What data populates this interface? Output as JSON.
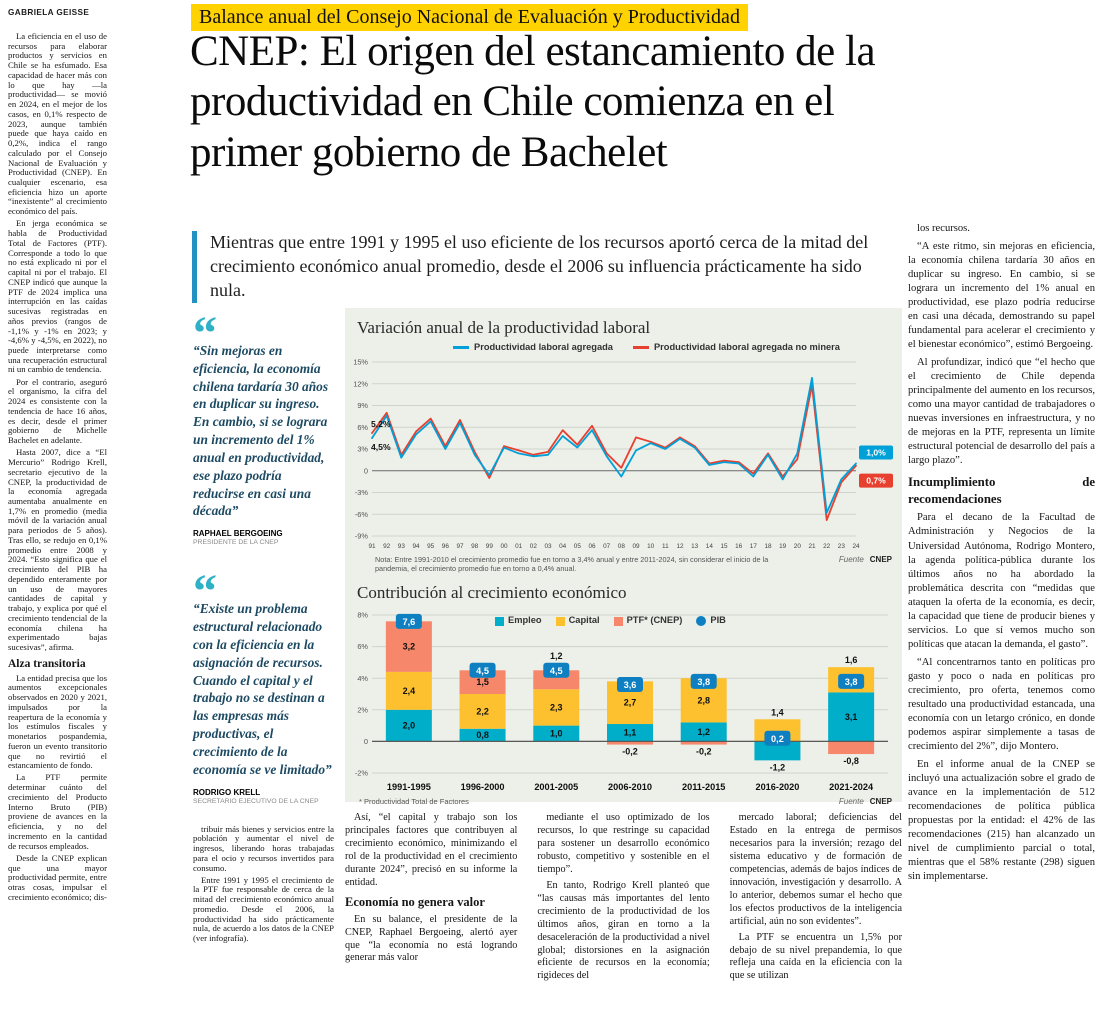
{
  "byline": "GABRIELA GEISSE",
  "kicker": "Balance anual del Consejo Nacional de Evaluación y Productividad",
  "headline": "CNEP: El origen del estancamiento de la productividad en Chile comienza en el primer gobierno de Bachelet",
  "deck": "Mientras que entre 1991 y 1995 el uso eficiente de los recursos aportó cerca de la mitad del crecimiento económico anual promedio, desde el 2006 su influencia prácticamente ha sido nula.",
  "quotes": [
    {
      "text": "“Sin mejoras en eficiencia, la economía chilena tardaría 30 años en duplicar su ingreso. En cambio, si se lograra un incremento del 1% anual en productividad, ese plazo podría reducirse en casi una década”",
      "name": "RAPHAEL BERGOEING",
      "role": "PRESIDENTE DE LA CNEP"
    },
    {
      "text": "“Existe un problema estructural relacionado con la eficiencia en la asignación de recursos. Cuando el capital y el trabajo no se destinan a las empresas más productivas, el crecimiento de la economía se ve limitado”",
      "name": "RODRIGO KRELL",
      "role": "SECRETARIO EJECUTIVO DE LA CNEP"
    }
  ],
  "columns": {
    "col1": {
      "p1": "La eficiencia en el uso de recursos para elaborar productos y servicios en Chile se ha esfumado. Esa capacidad de hacer más con lo que hay —la productividad— se movió en 2024, en el mejor de los casos, en 0,1% respecto de 2023, aunque también puede que haya caído en 0,2%, indica el rango calculado por el Consejo Nacional de Evaluación y Productividad (CNEP). En cualquier escenario, esa eficiencia hizo un aporte “inexistente” al crecimiento económico del país.",
      "p2": "En jerga económica se habla de Productividad Total de Factores (PTF). Corresponde a todo lo que no está explicado ni por el capital ni por el trabajo. El CNEP indicó que aunque la PTF de 2024 implica una interrupción en las caídas sucesivas registradas en años previos (rangos de -1,1% y -1% en 2023; y -4,6% y -4,5%, en 2022), no puede interpretarse como una recuperación estructural ni un cambio de tendencia.",
      "p3": "Por el contrario, aseguró el organismo, la cifra del 2024 es consistente con la tendencia de hace 16 años, es decir, desde el primer gobierno de Michelle Bachelet en adelante.",
      "p4": "Hasta 2007, dice a “El Mercurio” Rodrigo Krell, secretario ejecutivo de la CNEP, la productividad de la economía agregada aumentaba anualmente en 1,7% en promedio (media móvil de la variación anual para periodos de 5 años). Tras ello, se redujo en 0,1% promedio entre 2008 y 2024. “Esto significa que el crecimiento del PIB ha dependido enteramente por un uso de mayores cantidades de capital y trabajo, y explica por qué el crecimiento tendencial de la economía chilena ha experimentado bajas sucesivas”, afirma.",
      "subhead": "Alza transitoria",
      "p5": "La entidad precisa que los aumentos excepcionales observados en 2020 y 2021, impulsados por la reapertura de la economía y los estímulos fiscales y monetarios pospandemia, fueron un evento transitorio que no revirtió el estancamiento de fondo.",
      "p6": "La PTF permite determinar cuánto del crecimiento del Producto Interno Bruto (PIB) proviene de avances en la eficiencia, y no del incremento en la cantidad de recursos empleados.",
      "p7": "Desde la CNEP explican que una mayor productividad permite, entre otras cosas, impulsar el crecimiento económico; dis-"
    },
    "col2": {
      "p1": "tribuir más bienes y servicios entre la población y aumentar el nivel de ingresos, liberando horas trabajadas para el ocio y recursos invertidos para consumo.",
      "p2": "Entre 1991 y 1995 el crecimiento de la PTF fue responsable de cerca de la mitad del crecimiento económico anual promedio. Desde el 2006, la productividad ha sido prácticamente nula, de acuerdo a los datos de la CNEP (ver infografía)."
    },
    "col3": {
      "p1": "Así, “el capital y trabajo son los principales factores que contribuyen al crecimiento económico, minimizando el rol de la productividad en el crecimiento durante 2024”, precisó en su informe la entidad.",
      "subhead": "Economía no genera valor",
      "p2": "En su balance, el presidente de la CNEP, Raphael Bergoeing, alertó ayer que “la economía no está logrando generar más valor"
    },
    "col4": {
      "p1": "mediante el uso optimizado de los recursos, lo que restringe su capacidad para sostener un desarrollo económico robusto, competitivo y sostenible en el tiempo”.",
      "p2": "En tanto, Rodrigo Krell planteó que “las causas más importantes del lento crecimiento de la productividad de los últimos años, giran en torno a la desaceleración de la productividad a nivel global; distorsiones en la asignación eficiente de recursos en la economía; rigideces del"
    },
    "col5": {
      "p1": "mercado laboral; deficiencias del Estado en la entrega de permisos necesarios para la inversión; rezago del sistema educativo y de formación de competencias, además de bajos índices de innovación, investigación y desarrollo. A lo anterior, debemos sumar el hecho que los efectos productivos de la inteligencia artificial, aún no son evidentes”.",
      "p2": "La PTF se encuentra un 1,5% por debajo de su nivel prepandemia, lo que refleja una caída en la eficiencia con la que se utilizan"
    },
    "col6": {
      "p1": "los recursos.",
      "p2": "“A este ritmo, sin mejoras en eficiencia, la economía chilena tardaría 30 años en duplicar su ingreso. En cambio, si se lograra un incremento del 1% anual en productividad, ese plazo podría reducirse en casi una década, demostrando su papel fundamental para acelerar el crecimiento y el bienestar económico”, estimó Bergoeing.",
      "p3": "Al profundizar, indicó que “el hecho que el crecimiento de Chile dependa principalmente del aumento en los recursos, como una mayor cantidad de trabajadores o nuevas inversiones en infraestructura, y no de mejoras en la PTF, representa un límite estructural potencial de desarrollo del país a largo plazo”.",
      "subhead": "Incumplimiento de recomendaciones",
      "p4": "Para el decano de la Facultad de Administración y Negocios de la Universidad Autónoma, Rodrigo Montero, la agenda política-pública durante los últimos años no ha abordado la problemática descrita con “medidas que ataquen la oferta de la economía, es decir, la capacidad que tiene de producir bienes y servicios. Lo que sí vemos mucho son políticas que atacan la demanda, el gasto”.",
      "p5": "“Al concentrarnos tanto en políticas pro gasto y poco o nada en políticas pro crecimiento, pro oferta, tenemos como resultado una productividad estancada, una economía con un letargo crónico, en donde podemos aspirar simplemente a tasas de crecimiento del 2%”, dijo Montero.",
      "p6": "En el informe anual de la CNEP se incluyó una actualización sobre el grado de avance en la implementación de 512 recomendaciones de política pública propuestas por la entidad: el 42% de las recomendaciones (215) han alcanzado un nivel de cumplimiento parcial o total, mientras que el 58% restante (298) siguen sin implementarse."
    }
  },
  "chart_data": [
    {
      "type": "line",
      "title": "Variación anual de la productividad laboral",
      "x": [
        "91",
        "92",
        "93",
        "94",
        "95",
        "96",
        "97",
        "98",
        "99",
        "00",
        "01",
        "02",
        "03",
        "04",
        "05",
        "06",
        "07",
        "08",
        "09",
        "10",
        "11",
        "12",
        "13",
        "14",
        "15",
        "16",
        "17",
        "18",
        "19",
        "20",
        "21",
        "22",
        "23",
        "24"
      ],
      "series": [
        {
          "name": "Productividad laboral agregada",
          "color": "#00a0d9",
          "start_label": "4,5%",
          "end_label": "1,0%",
          "values": [
            4.5,
            7.6,
            1.8,
            5.0,
            6.8,
            3.0,
            6.6,
            2.2,
            -0.6,
            3.2,
            2.4,
            2.0,
            2.2,
            4.8,
            3.2,
            5.6,
            2.0,
            -0.8,
            2.8,
            3.8,
            3.0,
            4.4,
            3.2,
            0.8,
            1.2,
            1.0,
            -0.8,
            2.2,
            -1.2,
            2.4,
            12.8,
            -5.8,
            -1.2,
            1.0
          ]
        },
        {
          "name": "Productividad laboral agregada no minera",
          "color": "#e8402f",
          "start_label": "5,2%",
          "end_label": "0,7%",
          "values": [
            5.2,
            8.0,
            2.2,
            5.4,
            7.2,
            3.4,
            7.0,
            2.6,
            -1.0,
            3.4,
            2.8,
            2.2,
            2.6,
            5.6,
            3.6,
            6.2,
            2.4,
            0.4,
            4.6,
            4.0,
            3.2,
            4.6,
            3.4,
            1.0,
            1.4,
            1.2,
            -0.4,
            2.4,
            -0.8,
            1.6,
            11.8,
            -6.8,
            -1.6,
            0.7
          ]
        }
      ],
      "ylim": [
        -9,
        15
      ],
      "yticks": [
        15,
        12,
        9,
        6,
        3,
        0,
        -3,
        -6,
        -9
      ],
      "note": "Nota: Entre 1991-2010 el crecimiento promedio fue en torno a 3,4% anual y entre 2011-2024, sin considerar el inicio de la pandemia, el crecimiento promedio fue en torno a 0,4% anual.",
      "source_label": "Fuente",
      "source": "CNEP"
    },
    {
      "type": "bar",
      "title": "Contribución al crecimiento económico",
      "categories": [
        "1991-1995",
        "1996-2000",
        "2001-2005",
        "2006-2010",
        "2011-2015",
        "2016-2020",
        "2021-2024"
      ],
      "series": [
        {
          "name": "Empleo",
          "color": "#00aec9",
          "values": [
            2.0,
            0.8,
            1.0,
            1.1,
            1.2,
            -1.2,
            3.1
          ]
        },
        {
          "name": "Capital",
          "color": "#fdc12f",
          "values": [
            2.4,
            2.2,
            2.3,
            2.7,
            2.8,
            1.4,
            1.6
          ]
        },
        {
          "name": "PTF* (CNEP)",
          "color": "#f6876a",
          "values": [
            3.2,
            1.5,
            1.2,
            -0.2,
            -0.2,
            0.0,
            -0.8
          ]
        }
      ],
      "pib": {
        "name": "PIB",
        "color": "#0e7fc1",
        "values": [
          7.6,
          4.5,
          4.5,
          3.6,
          3.8,
          0.2,
          3.8
        ]
      },
      "ylim": [
        -2,
        8
      ],
      "yticks": [
        8,
        6,
        4,
        2,
        0,
        -2
      ],
      "footnote": "* Productividad Total de Factores",
      "source_label": "Fuente",
      "source": "CNEP"
    }
  ]
}
